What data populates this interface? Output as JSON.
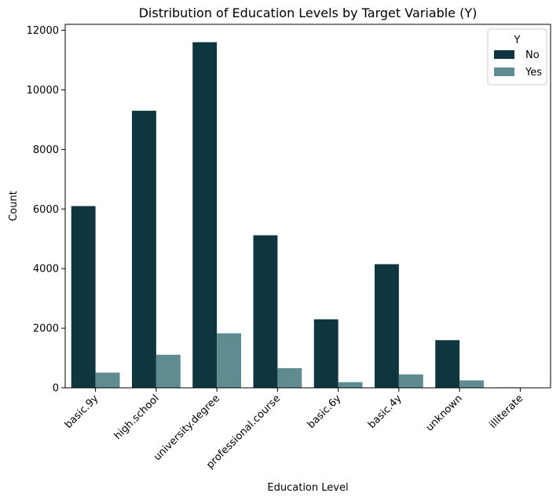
{
  "chart_data": {
    "type": "bar",
    "title": "Distribution of Education Levels by Target Variable (Y)",
    "xlabel": "Education Level",
    "ylabel": "Count",
    "categories": [
      "basic.9y",
      "high.school",
      "university.degree",
      "professional.course",
      "basic.6y",
      "basic.4y",
      "unknown",
      "illiterate"
    ],
    "series": [
      {
        "name": "No",
        "color": "#0f363f",
        "values": [
          6100,
          9300,
          11600,
          5120,
          2300,
          4150,
          1600,
          15
        ]
      },
      {
        "name": "Yes",
        "color": "#5f8c91",
        "values": [
          510,
          1110,
          1830,
          660,
          190,
          450,
          250,
          3
        ]
      }
    ],
    "ylim": [
      0,
      12200
    ],
    "yticks": [
      0,
      2000,
      4000,
      6000,
      8000,
      10000,
      12000
    ],
    "grid": false,
    "legend": {
      "title": "Y",
      "position": "top-right"
    }
  }
}
